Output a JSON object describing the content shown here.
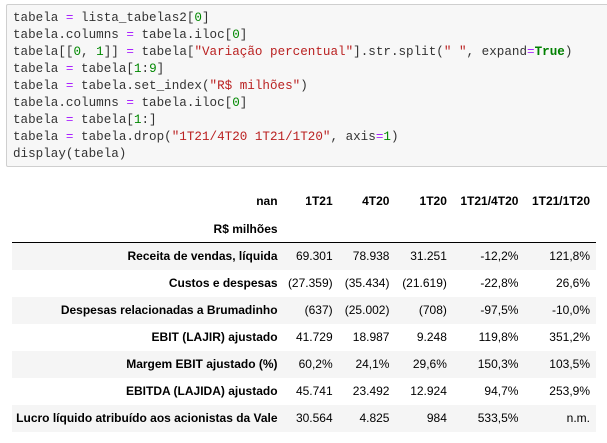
{
  "code_cell": {
    "lines": [
      [
        "tabela ",
        "= ",
        "lista_tabelas2[",
        "0",
        "]"
      ],
      [
        "tabela.columns ",
        "= ",
        "tabela.iloc[",
        "0",
        "]"
      ],
      [
        "tabela[[",
        "0",
        ", ",
        "1",
        "]] ",
        "= ",
        "tabela[",
        "\"Variação percentual\"",
        "].str.split(",
        "\" \"",
        ", expand",
        "=",
        "True",
        ")"
      ],
      [
        "tabela ",
        "= ",
        "tabela[",
        "1",
        ":",
        "9",
        "]"
      ],
      [
        "tabela ",
        "= ",
        "tabela.set_index(",
        "\"R$ milhões\"",
        ")"
      ],
      [
        "tabela.columns ",
        "= ",
        "tabela.iloc[",
        "0",
        "]"
      ],
      [
        "tabela ",
        "= ",
        "tabela[",
        "1",
        ":]"
      ],
      [
        "tabela ",
        "= ",
        "tabela.drop(",
        "\"1T21/4T20 1T21/1T20\"",
        ", axis",
        "=",
        "1",
        ")"
      ],
      [
        "display(tabela)"
      ]
    ],
    "text": [
      "tabela = lista_tabelas2[0]",
      "tabela.columns = tabela.iloc[0]",
      "tabela[[0, 1]] = tabela[\"Variação percentual\"].str.split(\" \", expand=True)",
      "tabela = tabela[1:9]",
      "tabela = tabela.set_index(\"R$ milhões\")",
      "tabela.columns = tabela.iloc[0]",
      "tabela = tabela[1:]",
      "tabela = tabela.drop(\"1T21/4T20 1T21/1T20\", axis=1)",
      "display(tabela)"
    ]
  },
  "output_table": {
    "columns_name": "nan",
    "index_name": "R$ milhões",
    "columns": [
      "1T21",
      "4T20",
      "1T20",
      "1T21/4T20",
      "1T21/1T20"
    ],
    "rows": [
      {
        "label": "Receita de vendas, líquida",
        "values": [
          "69.301",
          "78.938",
          "31.251",
          "-12,2%",
          "121,8%"
        ]
      },
      {
        "label": "Custos e despesas",
        "values": [
          "(27.359)",
          "(35.434)",
          "(21.619)",
          "-22,8%",
          "26,6%"
        ]
      },
      {
        "label": "Despesas relacionadas a Brumadinho",
        "values": [
          "(637)",
          "(25.002)",
          "(708)",
          "-97,5%",
          "-10,0%"
        ]
      },
      {
        "label": "EBIT (LAJIR) ajustado",
        "values": [
          "41.729",
          "18.987",
          "9.248",
          "119,8%",
          "351,2%"
        ]
      },
      {
        "label": "Margem EBIT ajustado (%)",
        "values": [
          "60,2%",
          "24,1%",
          "29,6%",
          "150,3%",
          "103,5%"
        ]
      },
      {
        "label": "EBITDA (LAJIDA) ajustado",
        "values": [
          "45.741",
          "23.492",
          "12.924",
          "94,7%",
          "253,9%"
        ]
      },
      {
        "label": "Lucro líquido atribuído aos acionistas da Vale",
        "values": [
          "30.564",
          "4.825",
          "984",
          "533,5%",
          "n.m."
        ]
      }
    ]
  }
}
